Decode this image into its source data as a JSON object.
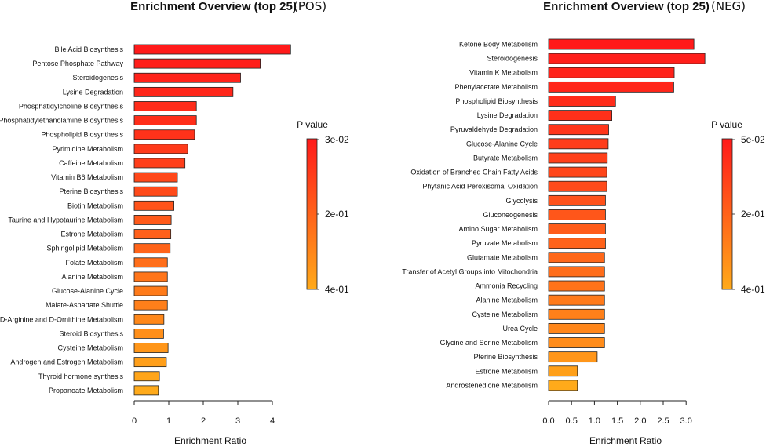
{
  "chart_data": [
    {
      "id": "pos",
      "type": "bar",
      "orientation": "horizontal",
      "title": "Enrichment Overview (top 25)",
      "tag": "(POS)",
      "xlabel": "Enrichment Ratio",
      "xlim": [
        0,
        4.5
      ],
      "xticks": [
        0,
        1,
        2,
        3,
        4
      ],
      "legend": {
        "title": "P value",
        "labels": [
          "3e-02",
          "2e-01",
          "4e-01"
        ],
        "placement": "right"
      },
      "categories": [
        "Bile Acid Biosynthesis",
        "Pentose Phosphate Pathway",
        "Steroidogenesis",
        "Lysine Degradation",
        "Phosphatidylcholine Biosynthesis",
        "Phosphatidylethanolamine Biosynthesis",
        "Phospholipid Biosynthesis",
        "Pyrimidine Metabolism",
        "Caffeine Metabolism",
        "Vitamin B6 Metabolism",
        "Pterine Biosynthesis",
        "Biotin Metabolism",
        "Taurine and Hypotaurine Metabolism",
        "Estrone Metabolism",
        "Sphingolipid Metabolism",
        "Folate Metabolism",
        "Alanine Metabolism",
        "Glucose-Alanine Cycle",
        "Malate-Aspartate Shuttle",
        "D-Arginine and D-Ornithine Metabolism",
        "Steroid Biosynthesis",
        "Cysteine Metabolism",
        "Androgen and Estrogen Metabolism",
        "Thyroid hormone synthesis",
        "Propanoate Metabolism"
      ],
      "values": [
        4.53,
        3.65,
        3.08,
        2.86,
        1.8,
        1.8,
        1.75,
        1.55,
        1.47,
        1.25,
        1.25,
        1.15,
        1.07,
        1.06,
        1.04,
        0.96,
        0.96,
        0.96,
        0.96,
        0.86,
        0.85,
        0.98,
        0.93,
        0.73,
        0.7
      ],
      "colors": [
        "#FF1A1A",
        "#FF1E1A",
        "#FF221A",
        "#FF261A",
        "#FF2C1A",
        "#FF2E1A",
        "#FF321A",
        "#FF3A1A",
        "#FF3E1A",
        "#FF481A",
        "#FF4A1A",
        "#FF531A",
        "#FF5A1A",
        "#FF601A",
        "#FF641A",
        "#FF6E1A",
        "#FF751A",
        "#FF7B1A",
        "#FF7F1A",
        "#FF881A",
        "#FF8F1A",
        "#FF961A",
        "#FF9F1A",
        "#FFA51A",
        "#FFAA1A"
      ]
    },
    {
      "id": "neg",
      "type": "bar",
      "orientation": "horizontal",
      "title": "Enrichment Overview (top 25)",
      "tag": "(NEG)",
      "xlabel": "Enrichment Ratio",
      "xlim": [
        0,
        3.4
      ],
      "xticks": [
        0.0,
        0.5,
        1.0,
        1.5,
        2.0,
        2.5,
        3.0
      ],
      "xtick_labels": [
        "0.0",
        "0.5",
        "1.0",
        "1.5",
        "2.0",
        "2.5",
        "3.0"
      ],
      "legend": {
        "title": "P value",
        "labels": [
          "5e-02",
          "2e-01",
          "4e-01"
        ],
        "placement": "right"
      },
      "categories": [
        "Ketone Body Metabolism",
        "Steroidogenesis",
        "Vitamin K Metabolism",
        "Phenylacetate Metabolism",
        "Phospholipid Biosynthesis",
        "Lysine Degradation",
        "Pyruvaldehyde Degradation",
        "Glucose-Alanine Cycle",
        "Butyrate Metabolism",
        "Oxidation of Branched Chain Fatty Acids",
        "Phytanic Acid Peroxisomal Oxidation",
        "Glycolysis",
        "Gluconeogenesis",
        "Amino Sugar Metabolism",
        "Pyruvate Metabolism",
        "Glutamate Metabolism",
        "Transfer of Acetyl Groups into Mitochondria",
        "Ammonia Recycling",
        "Alanine Metabolism",
        "Cysteine Metabolism",
        "Urea Cycle",
        "Glycine and Serine Metabolism",
        "Pterine Biosynthesis",
        "Estrone Metabolism",
        "Androstenedione Metabolism"
      ],
      "values": [
        3.17,
        3.41,
        2.74,
        2.73,
        1.46,
        1.38,
        1.31,
        1.3,
        1.28,
        1.27,
        1.27,
        1.24,
        1.24,
        1.24,
        1.24,
        1.22,
        1.22,
        1.22,
        1.22,
        1.22,
        1.22,
        1.22,
        1.06,
        0.63,
        0.63
      ],
      "colors": [
        "#FF1A1A",
        "#FF1E1A",
        "#FF221A",
        "#FF261A",
        "#FF2C1A",
        "#FF301A",
        "#FF361A",
        "#FF3C1A",
        "#FF401A",
        "#FF461A",
        "#FF4A1A",
        "#FF511A",
        "#FF561A",
        "#FF5C1A",
        "#FF621A",
        "#FF681A",
        "#FF6D1A",
        "#FF731A",
        "#FF7A1A",
        "#FF801A",
        "#FF861A",
        "#FF8C1A",
        "#FF961A",
        "#FFA01A",
        "#FFAA1A"
      ]
    }
  ],
  "colorbar": {
    "top": "#FF1A1A",
    "bottom": "#FFAA1A"
  }
}
